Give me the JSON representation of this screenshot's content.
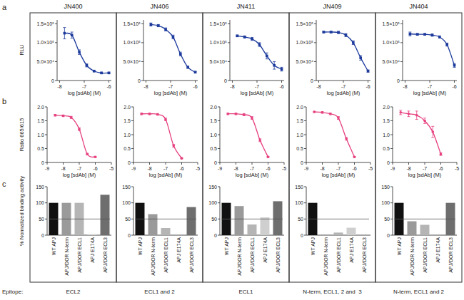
{
  "panel_labels": [
    "a",
    "b",
    "c"
  ],
  "epitope_heading": "Epitope:",
  "columns": [
    {
      "title": "JN400",
      "epitope": "ECL2"
    },
    {
      "title": "JN406",
      "epitope": "ECL1 and 2"
    },
    {
      "title": "JN411",
      "epitope": "ECL1"
    },
    {
      "title": "JN409",
      "epitope": "N-term, ECL1, 2 and  3"
    },
    {
      "title": "JN404",
      "epitope": "N-term, ECL1 and 2"
    }
  ],
  "chart_data": [
    {
      "type": "line",
      "x_label": "log [sdAb] (M)",
      "y_label": "RLU",
      "x": [
        -7.8,
        -7.5,
        -7.2,
        -6.9,
        -6.6,
        -6.3,
        -6.0
      ],
      "series": [
        {
          "color": "#1c3a9c",
          "marker": "square",
          "line_style": "smooth",
          "values": [
            125000,
            120000,
            75000,
            40000,
            25000,
            20000,
            20000
          ],
          "errors": [
            15000,
            8000,
            6000,
            4000,
            2000,
            2000,
            2000
          ]
        }
      ],
      "xlim": [
        -8.1,
        -5.9
      ],
      "xticks": [
        -8,
        -7,
        -6
      ],
      "ylim": [
        0,
        160000
      ],
      "yticks": [
        0,
        {
          "value": 50000,
          "label": "5.0×10⁴"
        },
        {
          "value": 100000,
          "label": "1.0×10⁵"
        },
        {
          "value": 150000,
          "label": "1.5×10⁵"
        }
      ]
    },
    {
      "type": "line",
      "x_label": "log [sdAb] (M)",
      "x": [
        -7.8,
        -7.5,
        -7.2,
        -6.9,
        -6.6,
        -6.3,
        -6.0
      ],
      "series": [
        {
          "color": "#1c3a9c",
          "marker": "square",
          "line_style": "smooth",
          "values": [
            148000,
            145000,
            135000,
            115000,
            70000,
            35000,
            22000
          ],
          "errors": [
            4000,
            3000,
            4000,
            5000,
            5000,
            3000,
            2000
          ]
        }
      ],
      "xlim": [
        -8.1,
        -5.9
      ],
      "xticks": [
        -8,
        -7,
        -6
      ],
      "ylim": [
        0,
        160000
      ],
      "yticks": [
        0,
        {
          "value": 50000,
          "label": "5.0×10⁴"
        },
        {
          "value": 100000,
          "label": "1.0×10⁵"
        },
        {
          "value": 150000,
          "label": "1.5×10⁵"
        }
      ]
    },
    {
      "type": "line",
      "x_label": "log [sdAb] (M)",
      "x": [
        -7.8,
        -7.5,
        -7.2,
        -6.9,
        -6.6,
        -6.3,
        -6.0
      ],
      "series": [
        {
          "color": "#1c3a9c",
          "marker": "square",
          "line_style": "smooth",
          "values": [
            118000,
            115000,
            110000,
            95000,
            65000,
            40000,
            30000
          ],
          "errors": [
            2000,
            3000,
            4000,
            5000,
            8000,
            10000,
            5000
          ]
        }
      ],
      "xlim": [
        -8.1,
        -5.9
      ],
      "xticks": [
        -8,
        -7,
        -6
      ],
      "ylim": [
        0,
        160000
      ],
      "yticks": [
        0,
        {
          "value": 50000,
          "label": "5.0×10⁴"
        },
        {
          "value": 100000,
          "label": "1.0×10⁵"
        },
        {
          "value": 150000,
          "label": "1.5×10⁵"
        }
      ]
    },
    {
      "type": "line",
      "x_label": "log [sdAb] (M)",
      "x": [
        -7.8,
        -7.5,
        -7.2,
        -6.9,
        -6.6,
        -6.3,
        -6.0
      ],
      "series": [
        {
          "color": "#1c3a9c",
          "marker": "square",
          "line_style": "smooth",
          "values": [
            128000,
            128000,
            127000,
            120000,
            100000,
            60000,
            25000
          ],
          "errors": [
            2000,
            2000,
            3000,
            4000,
            5000,
            6000,
            3000
          ]
        }
      ],
      "xlim": [
        -8.1,
        -5.9
      ],
      "xticks": [
        -8,
        -7,
        -6
      ],
      "ylim": [
        0,
        160000
      ],
      "yticks": [
        0,
        {
          "value": 50000,
          "label": "5.0×10⁴"
        },
        {
          "value": 100000,
          "label": "1.0×10⁵"
        },
        {
          "value": 150000,
          "label": "1.5×10⁵"
        }
      ]
    },
    {
      "type": "line",
      "x_label": "log [sdAb] (M)",
      "x": [
        -7.8,
        -7.5,
        -7.2,
        -6.9,
        -6.6,
        -6.3,
        -6.0
      ],
      "series": [
        {
          "color": "#1c3a9c",
          "marker": "square",
          "line_style": "smooth",
          "values": [
            123000,
            122000,
            122000,
            120000,
            115000,
            95000,
            40000
          ],
          "errors": [
            5000,
            2000,
            2000,
            3000,
            3000,
            4000,
            5000
          ]
        }
      ],
      "xlim": [
        -8.1,
        -5.9
      ],
      "xticks": [
        -8,
        -7,
        -6
      ],
      "ylim": [
        0,
        160000
      ],
      "yticks": [
        0,
        {
          "value": 50000,
          "label": "5.0×10⁴"
        },
        {
          "value": 100000,
          "label": "1.0×10⁵"
        },
        {
          "value": 150000,
          "label": "1.5×10⁵"
        }
      ]
    },
    {
      "type": "line",
      "x_label": "log [sdAb] (M)",
      "y_label": "Ratio 665/615",
      "x": [
        -8.5,
        -8,
        -7.5,
        -7,
        -6.5,
        -6
      ],
      "series": [
        {
          "color": "#e6407f",
          "marker": "circle",
          "line_style": "smooth",
          "values": [
            1.7,
            1.68,
            1.62,
            1.2,
            0.3,
            0.2
          ],
          "errors": [
            0.03,
            0.03,
            0.04,
            0.05,
            0.03,
            0.02
          ]
        }
      ],
      "xlim": [
        -9,
        -5
      ],
      "xticks": [
        -9,
        -8,
        -7,
        -6,
        -5
      ],
      "ylim": [
        0,
        2
      ],
      "yticks": [
        0,
        0.5,
        {
          "value": 1,
          "label": "1.0"
        },
        1.5,
        {
          "value": 2,
          "label": "2.0"
        }
      ]
    },
    {
      "type": "line",
      "x_label": "log [sdAb] (M)",
      "x": [
        -8.5,
        -8,
        -7.5,
        -7,
        -6.5,
        -6
      ],
      "series": [
        {
          "color": "#e6407f",
          "marker": "circle",
          "line_style": "smooth",
          "values": [
            1.75,
            1.75,
            1.73,
            1.55,
            0.6,
            0.15
          ],
          "errors": [
            0.03,
            0.03,
            0.03,
            0.05,
            0.05,
            0.02
          ]
        }
      ],
      "xlim": [
        -9,
        -5
      ],
      "xticks": [
        -9,
        -8,
        -7,
        -6,
        -5
      ],
      "ylim": [
        0,
        2
      ],
      "yticks": [
        0,
        0.5,
        {
          "value": 1,
          "label": "1.0"
        },
        1.5,
        {
          "value": 2,
          "label": "2.0"
        }
      ]
    },
    {
      "type": "line",
      "x_label": "log [sdAb] (M)",
      "x": [
        -8.5,
        -8,
        -7.5,
        -7,
        -6.5,
        -6
      ],
      "series": [
        {
          "color": "#e6407f",
          "marker": "circle",
          "line_style": "smooth",
          "values": [
            1.75,
            1.75,
            1.72,
            1.6,
            0.8,
            0.2
          ],
          "errors": [
            0.03,
            0.03,
            0.04,
            0.05,
            0.05,
            0.02
          ]
        }
      ],
      "xlim": [
        -9,
        -5
      ],
      "xticks": [
        -9,
        -8,
        -7,
        -6,
        -5
      ],
      "ylim": [
        0,
        2
      ],
      "yticks": [
        0,
        0.5,
        {
          "value": 1,
          "label": "1.0"
        },
        1.5,
        {
          "value": 2,
          "label": "2.0"
        }
      ]
    },
    {
      "type": "line",
      "x_label": "log [sdAb] (M)",
      "x": [
        -8.5,
        -8,
        -7.5,
        -7,
        -6.5,
        -6
      ],
      "series": [
        {
          "color": "#e6407f",
          "marker": "circle",
          "line_style": "smooth",
          "values": [
            1.82,
            1.8,
            1.75,
            1.6,
            0.85,
            0.2
          ],
          "errors": [
            0.02,
            0.03,
            0.03,
            0.05,
            0.05,
            0.02
          ]
        }
      ],
      "xlim": [
        -9,
        -5
      ],
      "xticks": [
        -9,
        -8,
        -7,
        -6,
        -5
      ],
      "ylim": [
        0,
        2
      ],
      "yticks": [
        0,
        0.5,
        {
          "value": 1,
          "label": "1.0"
        },
        1.5,
        {
          "value": 2,
          "label": "2.0"
        }
      ]
    },
    {
      "type": "line",
      "x_label": "log [sdAb] (M)",
      "x": [
        -8.5,
        -8,
        -7.5,
        -7,
        -6.5,
        -6
      ],
      "series": [
        {
          "color": "#e6407f",
          "marker": "circle",
          "line_style": "smooth",
          "values": [
            1.8,
            1.75,
            1.7,
            1.5,
            1.1,
            0.3
          ],
          "errors": [
            0.08,
            0.1,
            0.15,
            0.1,
            0.2,
            0.05
          ]
        }
      ],
      "xlim": [
        -9,
        -5
      ],
      "xticks": [
        -9,
        -8,
        -7,
        -6,
        -5
      ],
      "ylim": [
        0,
        2
      ],
      "yticks": [
        0,
        0.5,
        {
          "value": 1,
          "label": "1.0"
        },
        1.5,
        {
          "value": 2,
          "label": "2.0"
        }
      ]
    },
    {
      "type": "bar",
      "y_label": "% Normalized binding activity",
      "categories": [
        "WT APJ",
        "APJ/DOR N-term",
        "APJ/DOR ECL1",
        "APJ E174A",
        "APJ/DOR ECL3"
      ],
      "values": [
        100,
        100,
        100,
        3,
        125
      ],
      "colors": [
        "#111111",
        "#9a9a9a",
        "#b5b5b5",
        "#cfcfcf",
        "#6e6e6e"
      ],
      "threshold": 50,
      "ylim": [
        0,
        150
      ],
      "yticks": [
        0,
        50,
        100,
        150
      ]
    },
    {
      "type": "bar",
      "categories": [
        "WT APJ",
        "APJ/DOR N-term",
        "APJ/DOR ECL1",
        "APJ E174A",
        "APJ/DOR ECL3"
      ],
      "values": [
        100,
        65,
        22,
        0,
        87
      ],
      "colors": [
        "#111111",
        "#9a9a9a",
        "#b5b5b5",
        "#cfcfcf",
        "#6e6e6e"
      ],
      "threshold": 50,
      "ylim": [
        0,
        150
      ],
      "yticks": [
        0,
        50,
        100,
        150
      ]
    },
    {
      "type": "bar",
      "categories": [
        "WT APJ",
        "APJ/DOR N-term",
        "APJ/DOR ECL1",
        "APJ E174A",
        "APJ/DOR ECL3"
      ],
      "values": [
        100,
        90,
        33,
        55,
        105
      ],
      "colors": [
        "#111111",
        "#9a9a9a",
        "#b5b5b5",
        "#cfcfcf",
        "#6e6e6e"
      ],
      "threshold": 50,
      "ylim": [
        0,
        150
      ],
      "yticks": [
        0,
        50,
        100,
        150
      ]
    },
    {
      "type": "bar",
      "categories": [
        "WT APJ",
        "APJ/DOR N-term",
        "APJ/DOR ECL1",
        "APJ E174A",
        "APJ/DOR ECL3"
      ],
      "values": [
        100,
        1,
        8,
        23,
        0
      ],
      "colors": [
        "#111111",
        "#9a9a9a",
        "#b5b5b5",
        "#cfcfcf",
        "#6e6e6e"
      ],
      "threshold": 50,
      "ylim": [
        0,
        150
      ],
      "yticks": [
        0,
        50,
        100,
        150
      ]
    },
    {
      "type": "bar",
      "categories": [
        "WT APJ",
        "APJ/DOR N-term",
        "APJ/DOR ECL1",
        "APJ E174A",
        "APJ/DOR ECL3"
      ],
      "values": [
        100,
        43,
        32,
        0,
        100
      ],
      "colors": [
        "#111111",
        "#9a9a9a",
        "#b5b5b5",
        "#cfcfcf",
        "#6e6e6e"
      ],
      "threshold": 50,
      "ylim": [
        0,
        150
      ],
      "yticks": [
        0,
        50,
        100,
        150
      ]
    }
  ]
}
